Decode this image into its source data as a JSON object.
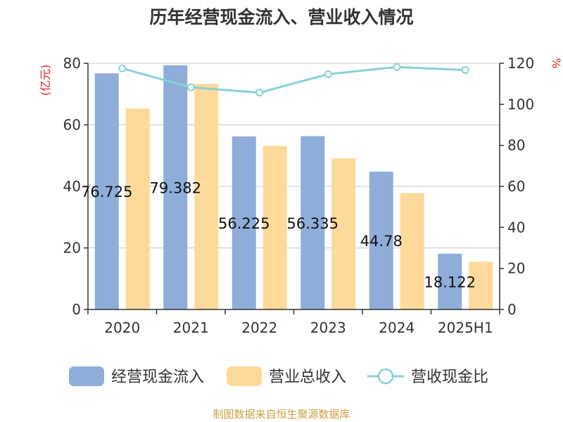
{
  "chart_data": {
    "type": "bar",
    "title": "历年经营现金流入、营业收入情况",
    "categories": [
      "2020",
      "2021",
      "2022",
      "2023",
      "2024",
      "2025H1"
    ],
    "left_axis": {
      "unit": "(亿元)",
      "ylim": [
        0,
        80
      ],
      "ticks": [
        "0",
        "20",
        "40",
        "60",
        "80"
      ]
    },
    "right_axis": {
      "unit": "%",
      "ylim": [
        0,
        120
      ],
      "ticks": [
        "0",
        "20",
        "40",
        "60",
        "80",
        "100",
        "120"
      ]
    },
    "series": [
      {
        "name": "经营现金流入",
        "type": "bar",
        "axis": "left",
        "color": "#8eadd9",
        "values": [
          76.725,
          79.382,
          56.225,
          56.335,
          44.78,
          18.122
        ],
        "labels": [
          "76.725",
          "79.382",
          "56.225",
          "56.335",
          "44.78",
          "18.122"
        ]
      },
      {
        "name": "营业总收入",
        "type": "bar",
        "axis": "left",
        "color": "#fdd99a",
        "values": [
          65.3,
          73.3,
          53.2,
          49.1,
          37.8,
          15.5
        ]
      },
      {
        "name": "营收现金比",
        "type": "line",
        "axis": "right",
        "color": "#86d2d6",
        "values": [
          117.5,
          108.3,
          105.7,
          114.7,
          118.2,
          116.7
        ]
      }
    ],
    "grid": true,
    "legend_position": "bottom"
  },
  "source_text": "制图数据来自恒生聚源数据库"
}
